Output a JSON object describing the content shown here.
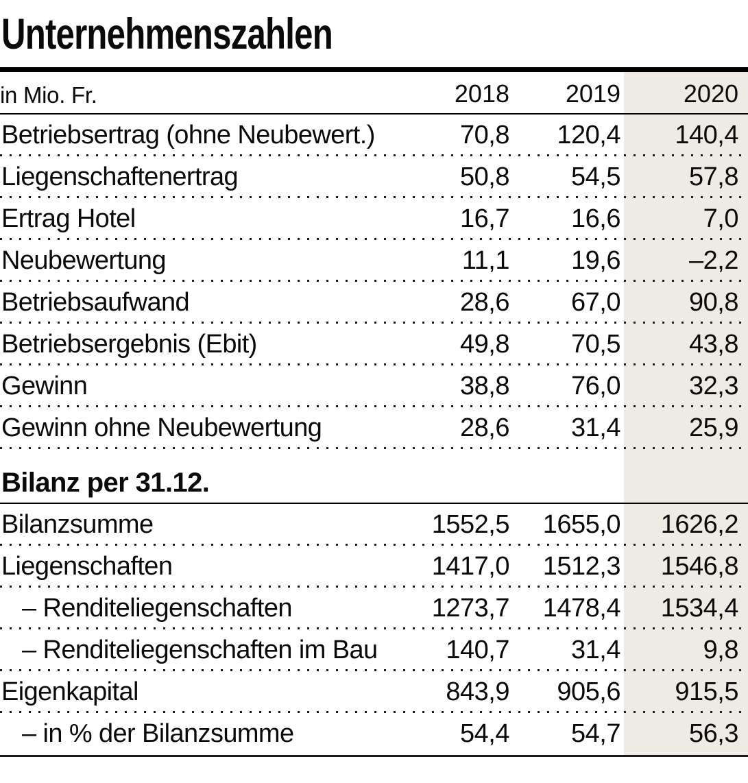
{
  "chart_data": {
    "type": "table",
    "title": "Unternehmenszahlen",
    "unit_label": "in Mio. Fr.",
    "columns": [
      "2018",
      "2019",
      "2020"
    ],
    "highlight_column": "2020",
    "highlight_color": "#edebe3",
    "rows1": [
      {
        "label": "Betriebsertrag (ohne Neubewert.)",
        "v2018": "70,8",
        "v2019": "120,4",
        "v2020": "140,4"
      },
      {
        "label": "Liegenschaftenertrag",
        "v2018": "50,8",
        "v2019": "54,5",
        "v2020": "57,8"
      },
      {
        "label": "Ertrag Hotel",
        "v2018": "16,7",
        "v2019": "16,6",
        "v2020": "7,0"
      },
      {
        "label": "Neubewertung",
        "v2018": "11,1",
        "v2019": "19,6",
        "v2020": "–2,2"
      },
      {
        "label": "Betriebsaufwand",
        "v2018": "28,6",
        "v2019": "67,0",
        "v2020": "90,8"
      },
      {
        "label": "Betriebsergebnis (Ebit)",
        "v2018": "49,8",
        "v2019": "70,5",
        "v2020": "43,8"
      },
      {
        "label": "Gewinn",
        "v2018": "38,8",
        "v2019": "76,0",
        "v2020": "32,3"
      },
      {
        "label": "Gewinn ohne Neubewertung",
        "v2018": "28,6",
        "v2019": "31,4",
        "v2020": "25,9"
      }
    ],
    "section2_header": "Bilanz per 31.12.",
    "rows2": [
      {
        "label": "Bilanzsumme",
        "v2018": "1552,5",
        "v2019": "1655,0",
        "v2020": "1626,2"
      },
      {
        "label": "Liegenschaften",
        "v2018": "1417,0",
        "v2019": "1512,3",
        "v2020": "1546,8"
      },
      {
        "label": "– Renditeliegenschaften",
        "v2018": "1273,7",
        "v2019": "1478,4",
        "v2020": "1534,4"
      },
      {
        "label": "– Renditeliegenschaften im Bau",
        "v2018": "140,7",
        "v2019": "31,4",
        "v2020": "9,8"
      },
      {
        "label": "Eigenkapital",
        "v2018": "843,9",
        "v2019": "905,6",
        "v2020": "915,5"
      },
      {
        "label": "– in % der Bilanzsumme",
        "v2018": "54,4",
        "v2019": "54,7",
        "v2020": "56,3"
      }
    ]
  }
}
